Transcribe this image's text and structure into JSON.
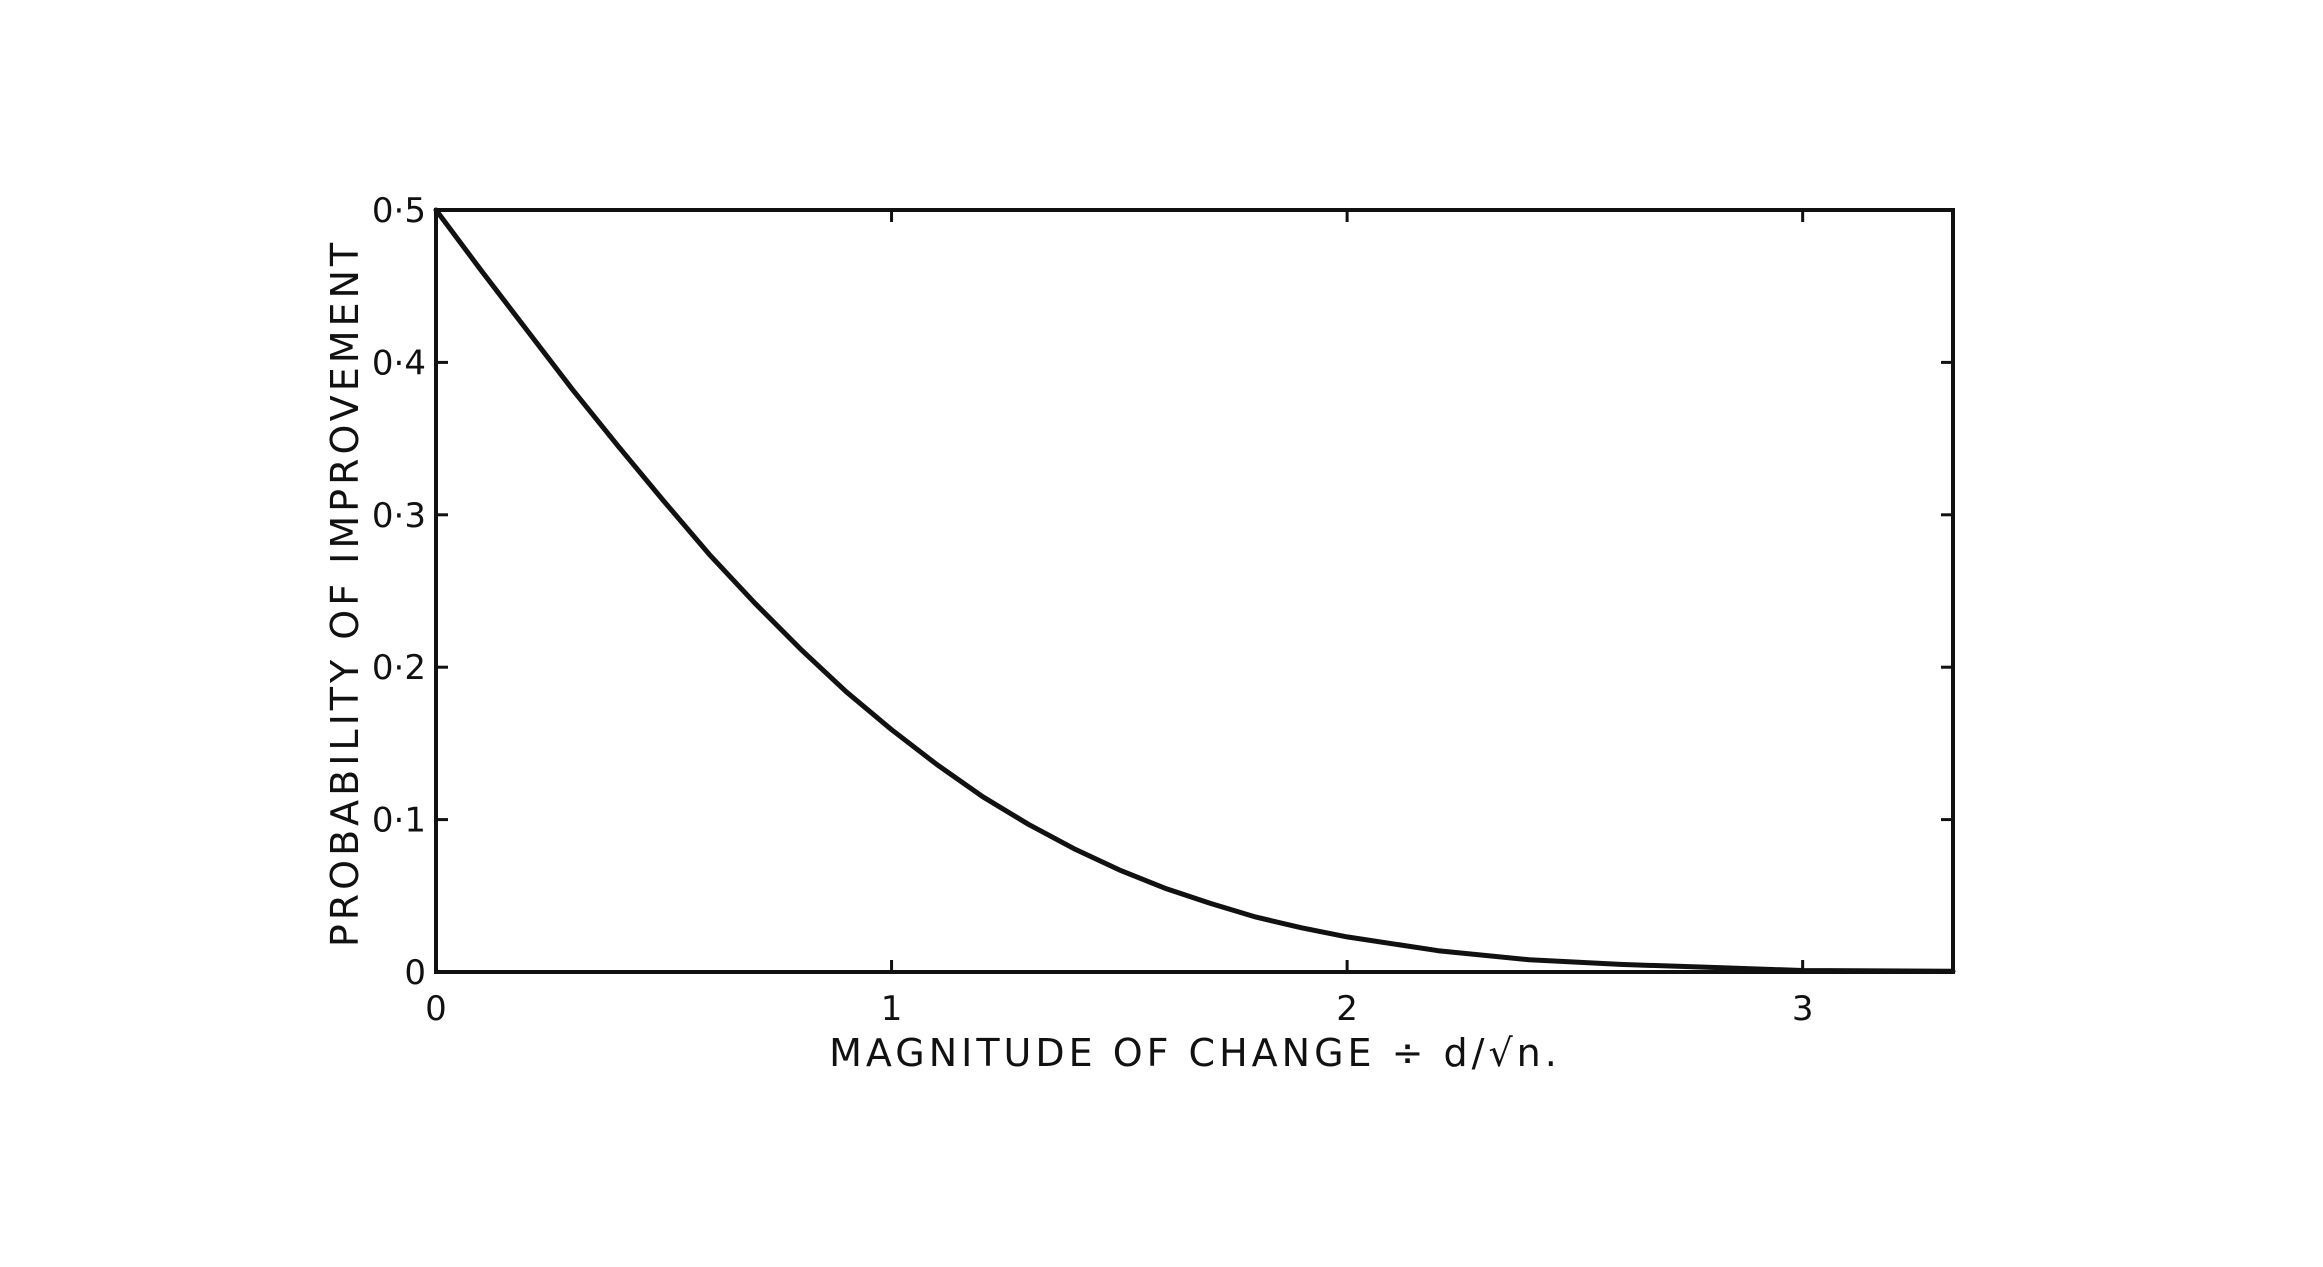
{
  "chart_data": {
    "type": "line",
    "title": "",
    "xlabel": "MAGNITUDE OF CHANGE ÷ d/√n.",
    "ylabel": "PROBABILITY OF IMPROVEMENT",
    "xlim": [
      0,
      3.33
    ],
    "ylim": [
      0,
      0.5
    ],
    "x_ticks": [
      0,
      1,
      2,
      3
    ],
    "x_tick_labels": [
      "0",
      "1",
      "2",
      "3"
    ],
    "y_ticks": [
      0,
      0.1,
      0.2,
      0.3,
      0.4,
      0.5
    ],
    "y_tick_labels": [
      "0",
      "0·1",
      "0·2",
      "0·3",
      "0·4",
      "0·5"
    ],
    "grid": false,
    "legend": "none",
    "series": [
      {
        "x": [
          0,
          0.1,
          0.2,
          0.3,
          0.4,
          0.5,
          0.6,
          0.7,
          0.8,
          0.9,
          1.0,
          1.1,
          1.2,
          1.3,
          1.4,
          1.5,
          1.6,
          1.7,
          1.8,
          1.9,
          2.0,
          2.2,
          2.4,
          2.6,
          2.8,
          3.0,
          3.33
        ],
        "values": [
          0.5,
          0.46,
          0.421,
          0.382,
          0.345,
          0.309,
          0.274,
          0.242,
          0.212,
          0.184,
          0.159,
          0.136,
          0.115,
          0.097,
          0.081,
          0.067,
          0.055,
          0.045,
          0.036,
          0.029,
          0.023,
          0.014,
          0.008,
          0.005,
          0.003,
          0.001,
          0.0005
        ]
      }
    ],
    "line_color": "#111111"
  }
}
